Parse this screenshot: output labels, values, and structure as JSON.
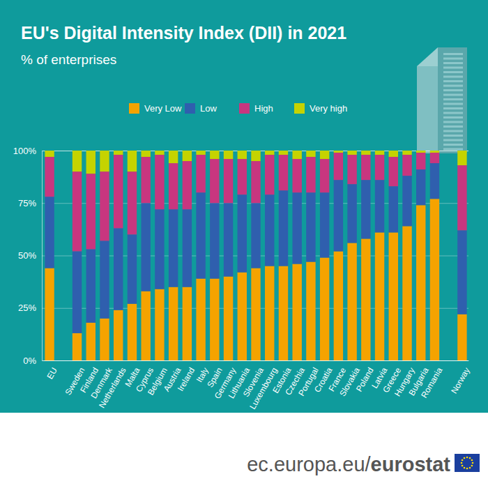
{
  "chart_data": {
    "type": "bar",
    "title": "EU's Digital Intensity Index (DII) in 2021",
    "subtitle": "% of enterprises",
    "stacked": true,
    "legend": "top",
    "grid": true,
    "ylim": [
      0,
      100
    ],
    "yticks": [
      {
        "value": 0,
        "label": "0%"
      },
      {
        "value": 25,
        "label": "25%"
      },
      {
        "value": 50,
        "label": "50%"
      },
      {
        "value": 75,
        "label": "75%"
      },
      {
        "value": 100,
        "label": "100%"
      }
    ],
    "categories": [
      "EU",
      null,
      "Sweden",
      "Finland",
      "Denmark",
      "Netherlands",
      "Malta",
      "Cyprus",
      "Belgium",
      "Austria",
      "Ireland",
      "Italy",
      "Spain",
      "Germany",
      "Lithuania",
      "Slovenia",
      "Luxembourg",
      "Estonia",
      "Czechia",
      "Portugal",
      "Croatia",
      "France",
      "Slovakia",
      "Poland",
      "Latvia",
      "Greece",
      "Hungary",
      "Bulgaria",
      "Romania",
      null,
      "Norway"
    ],
    "series": [
      {
        "name": "Very Low",
        "color": "#f5a300",
        "values": [
          44,
          null,
          13,
          18,
          20,
          24,
          27,
          33,
          34,
          35,
          35,
          39,
          39,
          40,
          42,
          44,
          45,
          45,
          46,
          47,
          49,
          52,
          56,
          58,
          61,
          61,
          64,
          74,
          77,
          null,
          22
        ]
      },
      {
        "name": "Low",
        "color": "#2f5fae",
        "values": [
          34,
          null,
          39,
          35,
          37,
          39,
          33,
          42,
          38,
          37,
          37,
          41,
          36,
          35,
          37,
          31,
          34,
          36,
          34,
          33,
          31,
          34,
          28,
          28,
          25,
          22,
          24,
          17,
          17,
          null,
          40
        ]
      },
      {
        "name": "High",
        "color": "#c8367f",
        "values": [
          19,
          null,
          38,
          36,
          33,
          35,
          30,
          22,
          26,
          22,
          23,
          18,
          21,
          21,
          17,
          20,
          19,
          17,
          16,
          17,
          16,
          13,
          14,
          12,
          12,
          14,
          10,
          8,
          5,
          null,
          31
        ]
      },
      {
        "name": "Very high",
        "color": "#c5d300",
        "values": [
          3,
          null,
          10,
          11,
          10,
          2,
          10,
          3,
          2,
          6,
          5,
          2,
          4,
          4,
          4,
          5,
          2,
          2,
          4,
          3,
          4,
          1,
          2,
          2,
          2,
          3,
          2,
          1,
          1,
          null,
          7
        ]
      }
    ],
    "annotations": [
      "ec.europa.eu/",
      "eurostat"
    ]
  }
}
